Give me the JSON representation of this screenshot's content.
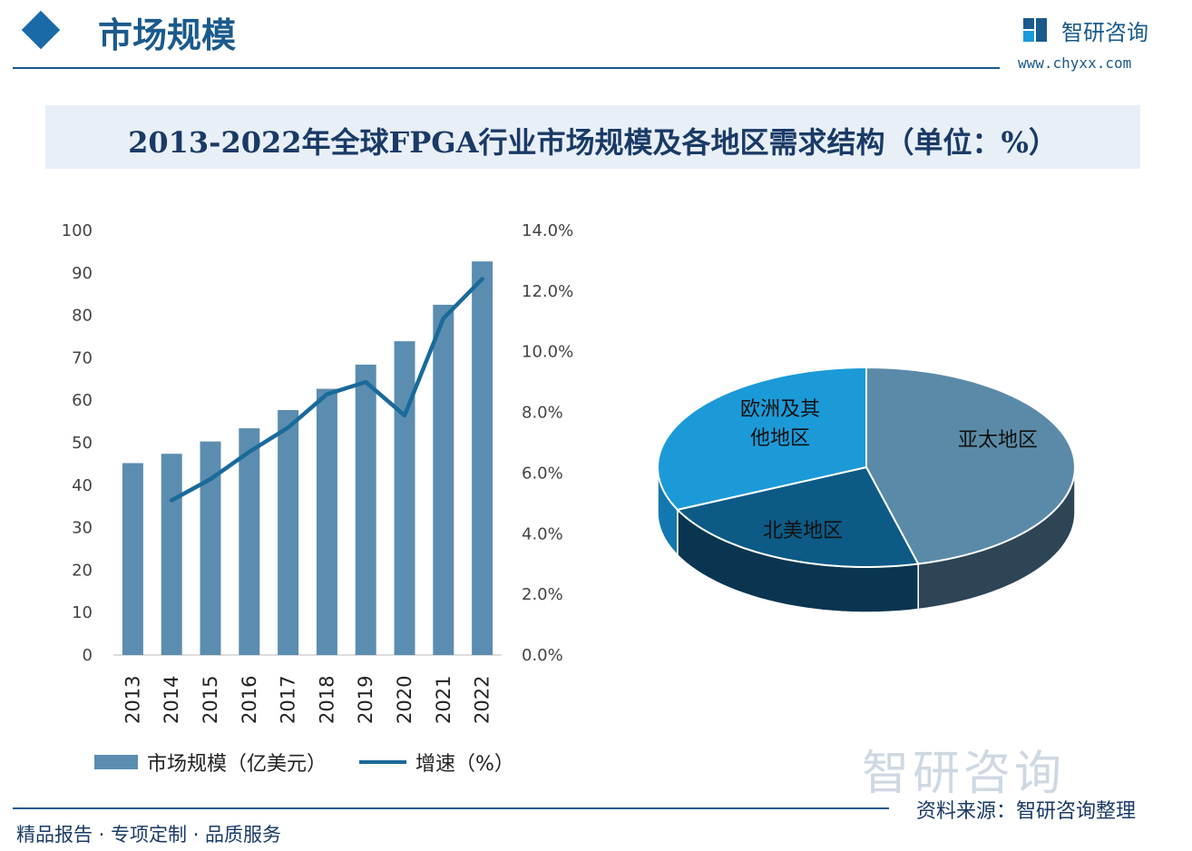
{
  "header": {
    "section_title": "市场规模",
    "brand": "智研咨询",
    "url": "www.chyxx.com"
  },
  "chart_title": "2013-2022年全球FPGA行业市场规模及各地区需求结构（单位：%）",
  "footer": {
    "tagline": "精品报告 · 专项定制 · 品质服务",
    "source": "资料来源：智研咨询整理",
    "watermark": "智研咨询"
  },
  "colors": {
    "bar": "#5b8db0",
    "line": "#1a6a9a",
    "asia": "#5b8aa8",
    "na": "#0d5a86",
    "eu": "#1c9ad8"
  },
  "chart_data": [
    {
      "type": "bar+line",
      "categories": [
        "2013",
        "2014",
        "2015",
        "2016",
        "2017",
        "2018",
        "2019",
        "2020",
        "2021",
        "2022"
      ],
      "series": [
        {
          "name": "市场规模（亿美元）",
          "type": "bar",
          "axis": "left",
          "values": [
            45.2,
            47.4,
            50.3,
            53.4,
            57.7,
            62.7,
            68.4,
            73.9,
            82.5,
            92.7
          ]
        },
        {
          "name": "增速（%）",
          "type": "line",
          "axis": "right",
          "values": [
            null,
            5.1,
            5.8,
            6.7,
            7.5,
            8.6,
            9.0,
            7.9,
            11.1,
            12.4
          ]
        }
      ],
      "ylim_left": [
        0,
        100
      ],
      "yticks_left": [
        "0",
        "10",
        "20",
        "30",
        "40",
        "50",
        "60",
        "70",
        "80",
        "90",
        "100"
      ],
      "ylim_right": [
        0,
        14
      ],
      "yticks_right": [
        "0.0%",
        "2.0%",
        "4.0%",
        "6.0%",
        "8.0%",
        "10.0%",
        "12.0%",
        "14.0%"
      ],
      "legend": "bottom",
      "grid": false
    },
    {
      "type": "pie",
      "style": "3d",
      "labels": [
        "亚太地区",
        "北美地区",
        "欧洲及其他地区"
      ],
      "values": [
        46,
        22,
        32
      ]
    }
  ]
}
